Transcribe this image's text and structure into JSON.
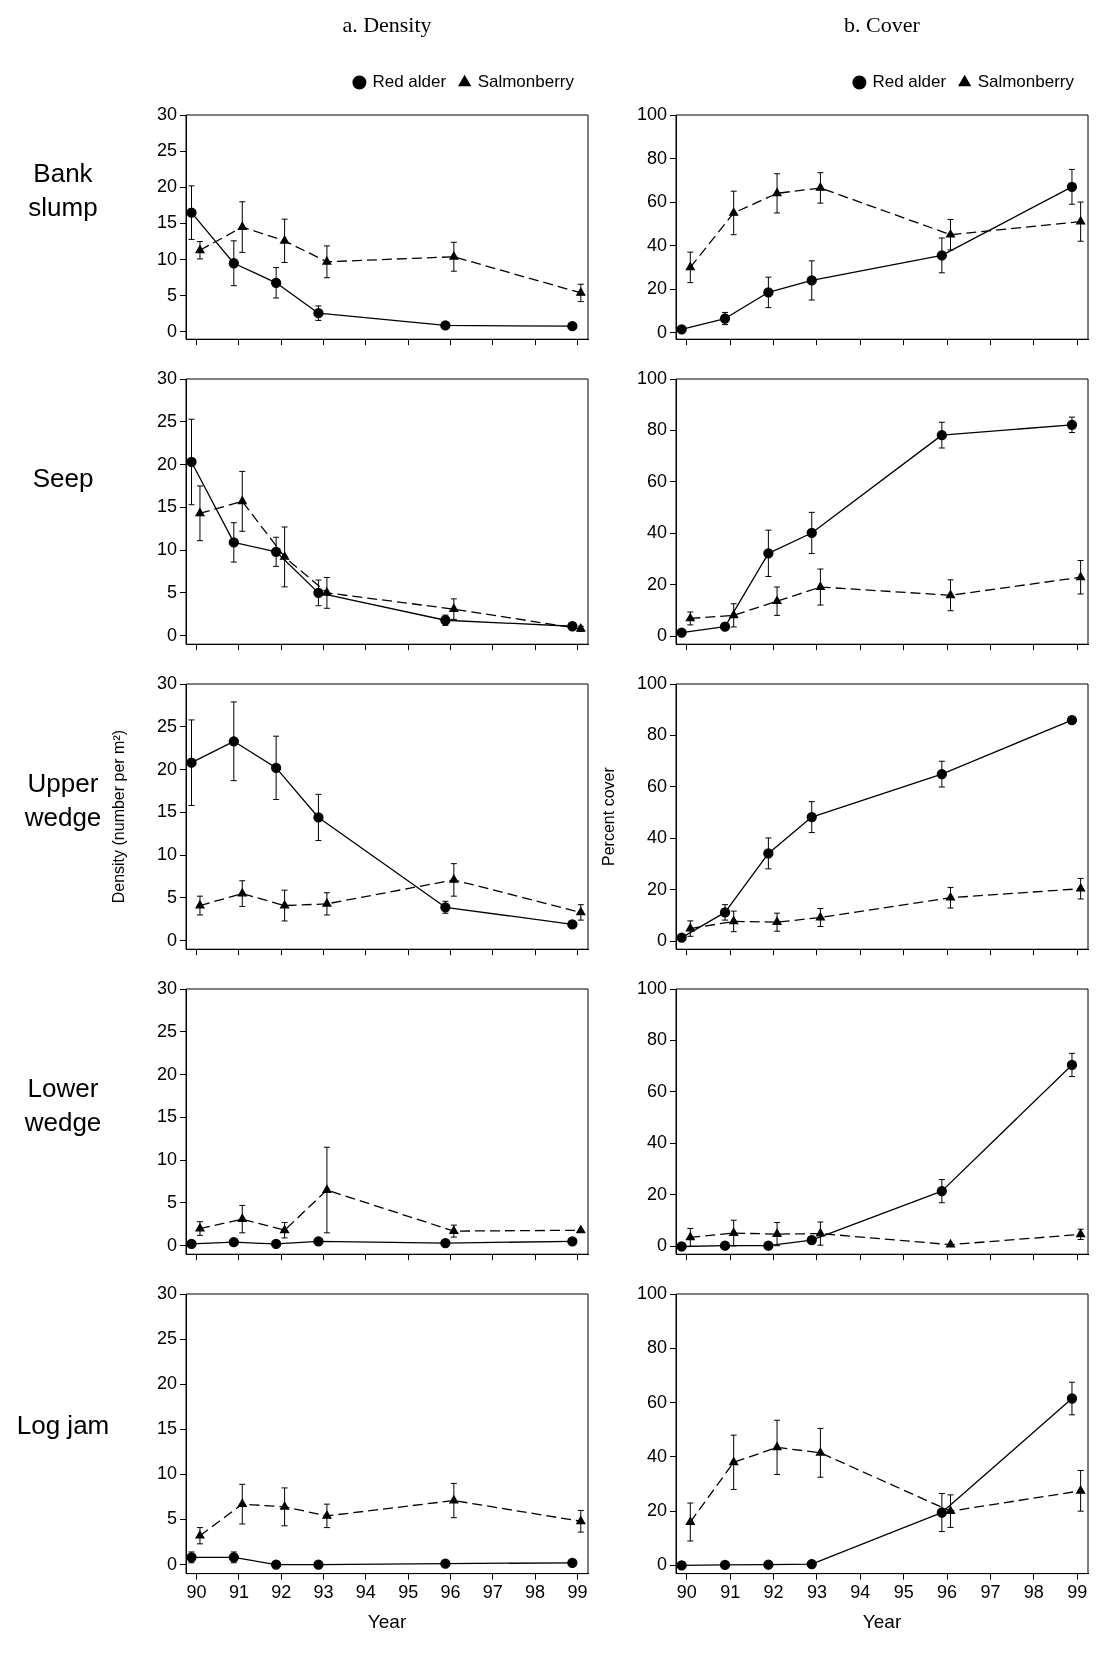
{
  "chart_data": [
    {
      "type": "line",
      "title": "a. Density",
      "annotations": [
        "Bank slump"
      ],
      "xlim": [
        89.75,
        99.25
      ],
      "xticks": [
        90,
        91,
        92,
        93,
        94,
        95,
        96,
        97,
        98,
        99
      ],
      "ylim": [
        -1,
        30
      ],
      "yticks": [
        0,
        5,
        10,
        15,
        20,
        25,
        30
      ],
      "tick_labels": "y",
      "legend": "top right",
      "series": [
        {
          "name": "Red alder",
          "color": "#000000",
          "marker": "circle",
          "line_style": "solid",
          "x": [
            89.88,
            90.88,
            91.88,
            92.88,
            95.88,
            98.88
          ],
          "values": [
            16.5,
            9.5,
            6.8,
            2.6,
            0.9,
            0.8
          ],
          "errors": [
            3.7,
            3.1,
            2.1,
            1.0,
            null,
            null
          ]
        },
        {
          "name": "Salmonberry",
          "color": "#000000",
          "marker": "triangle",
          "line_style": "dashed",
          "x": [
            90.08,
            91.08,
            92.08,
            93.08,
            96.08,
            99.08
          ],
          "values": [
            11.3,
            14.5,
            12.6,
            9.7,
            10.4,
            5.4
          ],
          "errors": [
            1.2,
            3.5,
            3.0,
            2.2,
            2.0,
            1.2
          ]
        }
      ]
    },
    {
      "type": "line",
      "title": "b. Cover",
      "xlim": [
        89.75,
        99.25
      ],
      "xticks": [
        90,
        91,
        92,
        93,
        94,
        95,
        96,
        97,
        98,
        99
      ],
      "ylim": [
        -3,
        100
      ],
      "yticks": [
        0,
        20,
        40,
        60,
        80,
        100
      ],
      "tick_labels": "y",
      "legend": "top right",
      "series": [
        {
          "name": "Red alder",
          "color": "#000000",
          "marker": "circle",
          "line_style": "solid",
          "x": [
            89.88,
            90.88,
            91.88,
            92.88,
            95.88,
            98.88
          ],
          "values": [
            1.5,
            6.5,
            18.5,
            24,
            35.5,
            67
          ],
          "errors": [
            null,
            2.8,
            7,
            9,
            8,
            8
          ]
        },
        {
          "name": "Salmonberry",
          "color": "#000000",
          "marker": "triangle",
          "line_style": "dashed",
          "x": [
            90.08,
            91.08,
            92.08,
            93.08,
            96.08,
            99.08
          ],
          "values": [
            30,
            55,
            64,
            66.5,
            45,
            51
          ],
          "errors": [
            7,
            10,
            9,
            7,
            7,
            9
          ]
        }
      ]
    },
    {
      "type": "line",
      "annotations": [
        "Seep"
      ],
      "xlim": [
        89.75,
        99.25
      ],
      "xticks": [
        90,
        91,
        92,
        93,
        94,
        95,
        96,
        97,
        98,
        99
      ],
      "ylim": [
        -1,
        30
      ],
      "yticks": [
        0,
        5,
        10,
        15,
        20,
        25,
        30
      ],
      "tick_labels": "y",
      "series": [
        {
          "color": "#000000",
          "marker": "circle",
          "line_style": "solid",
          "x": [
            89.88,
            90.88,
            91.88,
            92.88,
            95.88,
            98.88
          ],
          "values": [
            20.3,
            10.9,
            9.8,
            5.0,
            1.8,
            1.1
          ],
          "errors": [
            5,
            2.3,
            1.7,
            1.5,
            0.6,
            0.4
          ]
        },
        {
          "color": "#000000",
          "marker": "triangle",
          "line_style": "dashed",
          "x": [
            90.08,
            91.08,
            92.08,
            93.08,
            96.08,
            99.08
          ],
          "values": [
            14.3,
            15.7,
            9.2,
            5.0,
            3.1,
            0.8
          ],
          "errors": [
            3.2,
            3.5,
            3.5,
            1.8,
            1.2,
            0.3
          ]
        }
      ]
    },
    {
      "type": "line",
      "xlim": [
        89.75,
        99.25
      ],
      "xticks": [
        90,
        91,
        92,
        93,
        94,
        95,
        96,
        97,
        98,
        99
      ],
      "ylim": [
        -3,
        100
      ],
      "yticks": [
        0,
        20,
        40,
        60,
        80,
        100
      ],
      "tick_labels": "y",
      "series": [
        {
          "color": "#000000",
          "marker": "circle",
          "line_style": "solid",
          "x": [
            89.88,
            90.88,
            91.88,
            92.88,
            95.88,
            98.88
          ],
          "values": [
            1.5,
            3.8,
            32.3,
            40.2,
            78.2,
            82.2
          ],
          "errors": [
            null,
            null,
            9,
            8,
            5,
            3
          ]
        },
        {
          "color": "#000000",
          "marker": "triangle",
          "line_style": "dashed",
          "x": [
            90.08,
            91.08,
            92.08,
            93.08,
            96.08,
            99.08
          ],
          "values": [
            7,
            8.2,
            13.7,
            19.2,
            16,
            23
          ],
          "errors": [
            2.5,
            4.5,
            5.5,
            7,
            6,
            6.5
          ]
        }
      ]
    },
    {
      "type": "line",
      "annotations": [
        "Upper wedge"
      ],
      "ylabel": "Density (number per m²)",
      "xlim": [
        89.75,
        99.25
      ],
      "xticks": [
        90,
        91,
        92,
        93,
        94,
        95,
        96,
        97,
        98,
        99
      ],
      "ylim": [
        -1,
        30
      ],
      "yticks": [
        0,
        5,
        10,
        15,
        20,
        25,
        30
      ],
      "tick_labels": "y",
      "series": [
        {
          "color": "#000000",
          "marker": "circle",
          "line_style": "solid",
          "x": [
            89.88,
            90.88,
            91.88,
            92.88,
            95.88,
            98.88
          ],
          "values": [
            20.8,
            23.3,
            20.2,
            14.4,
            3.9,
            1.9
          ],
          "errors": [
            5,
            4.6,
            3.7,
            2.7,
            0.7,
            0.4
          ]
        },
        {
          "color": "#000000",
          "marker": "triangle",
          "line_style": "dashed",
          "x": [
            90.08,
            91.08,
            92.08,
            93.08,
            96.08,
            99.08
          ],
          "values": [
            4.1,
            5.5,
            4.1,
            4.3,
            7.1,
            3.3
          ],
          "errors": [
            1.1,
            1.5,
            1.8,
            1.3,
            1.9,
            0.9
          ]
        }
      ]
    },
    {
      "type": "line",
      "ylabel": "Percent cover",
      "xlim": [
        89.75,
        99.25
      ],
      "xticks": [
        90,
        91,
        92,
        93,
        94,
        95,
        96,
        97,
        98,
        99
      ],
      "ylim": [
        -3,
        100
      ],
      "yticks": [
        0,
        20,
        40,
        60,
        80,
        100
      ],
      "tick_labels": "y",
      "series": [
        {
          "color": "#000000",
          "marker": "circle",
          "line_style": "solid",
          "x": [
            89.88,
            90.88,
            91.88,
            92.88,
            95.88,
            98.88
          ],
          "values": [
            1.5,
            11.3,
            34.2,
            48.3,
            65,
            86
          ],
          "errors": [
            null,
            3,
            6,
            6,
            5,
            null
          ]
        },
        {
          "color": "#000000",
          "marker": "triangle",
          "line_style": "dashed",
          "x": [
            90.08,
            91.08,
            92.08,
            93.08,
            96.08,
            99.08
          ],
          "values": [
            5,
            7.8,
            7.5,
            9.3,
            17,
            20.5
          ],
          "errors": [
            3,
            4,
            3.5,
            3.5,
            4,
            4
          ]
        }
      ]
    },
    {
      "type": "line",
      "annotations": [
        "Lower wedge"
      ],
      "xlim": [
        89.75,
        99.25
      ],
      "xticks": [
        90,
        91,
        92,
        93,
        94,
        95,
        96,
        97,
        98,
        99
      ],
      "ylim": [
        -1,
        30
      ],
      "yticks": [
        0,
        5,
        10,
        15,
        20,
        25,
        30
      ],
      "tick_labels": "y",
      "series": [
        {
          "color": "#000000",
          "marker": "circle",
          "line_style": "solid",
          "x": [
            89.88,
            90.88,
            91.88,
            92.88,
            95.88,
            98.88
          ],
          "values": [
            0.2,
            0.4,
            0.2,
            0.5,
            0.3,
            0.5
          ]
        },
        {
          "color": "#000000",
          "marker": "triangle",
          "line_style": "dashed",
          "x": [
            90.08,
            91.08,
            92.08,
            93.08,
            96.08,
            99.08
          ],
          "values": [
            2.0,
            3.1,
            1.8,
            6.5,
            1.7,
            1.8
          ],
          "errors": [
            0.8,
            1.6,
            0.9,
            5,
            0.7,
            null
          ]
        }
      ]
    },
    {
      "type": "line",
      "xlim": [
        89.75,
        99.25
      ],
      "xticks": [
        90,
        91,
        92,
        93,
        94,
        95,
        96,
        97,
        98,
        99
      ],
      "ylim": [
        -3,
        100
      ],
      "yticks": [
        0,
        20,
        40,
        60,
        80,
        100
      ],
      "tick_labels": "y",
      "series": [
        {
          "color": "#000000",
          "marker": "circle",
          "line_style": "solid",
          "x": [
            89.88,
            90.88,
            91.88,
            92.88,
            95.88,
            98.88
          ],
          "values": [
            0,
            0.3,
            0.3,
            2.5,
            21.5,
            70.5
          ],
          "errors": [
            null,
            null,
            null,
            null,
            4.5,
            4.5
          ]
        },
        {
          "color": "#000000",
          "marker": "triangle",
          "line_style": "dashed",
          "x": [
            90.08,
            91.08,
            92.08,
            93.08,
            96.08,
            99.08
          ],
          "values": [
            3.5,
            5.2,
            4.8,
            5,
            0.7,
            4.7
          ],
          "errors": [
            3.5,
            5,
            4.5,
            4.5,
            null,
            2
          ]
        }
      ]
    },
    {
      "type": "line",
      "annotations": [
        "Log jam"
      ],
      "xlabel": "Year",
      "xlim": [
        89.75,
        99.25
      ],
      "xticks": [
        90,
        91,
        92,
        93,
        94,
        95,
        96,
        97,
        98,
        99
      ],
      "ylim": [
        -1,
        30
      ],
      "yticks": [
        0,
        5,
        10,
        15,
        20,
        25,
        30
      ],
      "series": [
        {
          "color": "#000000",
          "marker": "circle",
          "line_style": "solid",
          "x": [
            89.88,
            90.88,
            91.88,
            92.88,
            95.88,
            98.88
          ],
          "values": [
            0.8,
            0.8,
            0,
            0,
            0.1,
            0.2
          ],
          "errors": [
            0.6,
            0.6,
            null,
            null,
            null,
            null
          ]
        },
        {
          "color": "#000000",
          "marker": "triangle",
          "line_style": "dashed",
          "x": [
            90.08,
            91.08,
            92.08,
            93.08,
            96.08,
            99.08
          ],
          "values": [
            3.2,
            6.7,
            6.4,
            5.4,
            7.1,
            4.8
          ],
          "errors": [
            0.9,
            2.2,
            2.1,
            1.3,
            1.9,
            1.2
          ]
        }
      ]
    },
    {
      "type": "line",
      "xlabel": "Year",
      "xlim": [
        89.75,
        99.25
      ],
      "xticks": [
        90,
        91,
        92,
        93,
        94,
        95,
        96,
        97,
        98,
        99
      ],
      "ylim": [
        -3,
        100
      ],
      "yticks": [
        0,
        20,
        40,
        60,
        80,
        100
      ],
      "series": [
        {
          "color": "#000000",
          "marker": "circle",
          "line_style": "solid",
          "x": [
            89.88,
            90.88,
            91.88,
            92.88,
            95.88,
            98.88
          ],
          "values": [
            0,
            0.2,
            0.3,
            0.5,
            19.5,
            61.5
          ],
          "errors": [
            null,
            null,
            null,
            null,
            7,
            6
          ]
        },
        {
          "color": "#000000",
          "marker": "triangle",
          "line_style": "dashed",
          "x": [
            90.08,
            91.08,
            92.08,
            93.08,
            96.08,
            99.08
          ],
          "values": [
            16,
            38,
            43.5,
            41.5,
            20,
            27.5
          ],
          "errors": [
            7,
            10,
            10,
            9,
            6,
            7.5
          ]
        }
      ]
    }
  ]
}
